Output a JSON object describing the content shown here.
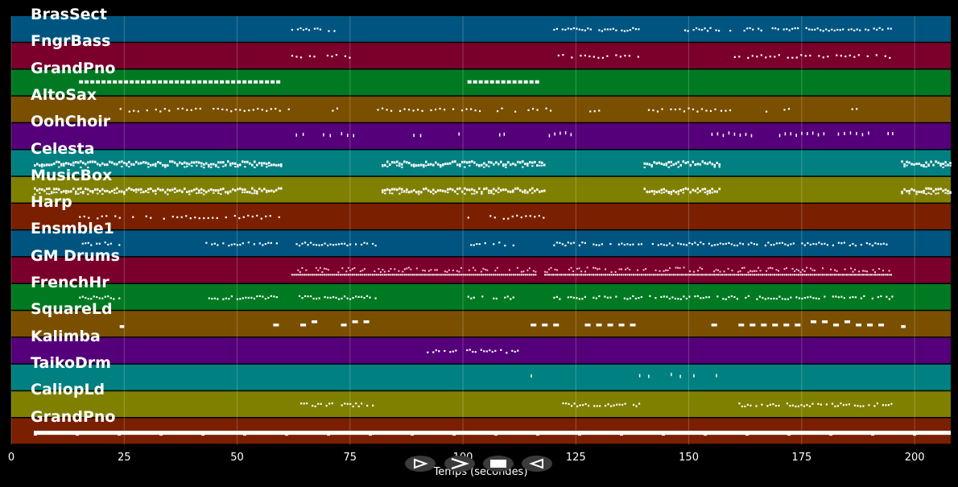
{
  "chart_data": {
    "type": "piano-roll",
    "xlabel": "Temps (secondes)",
    "xlim": [
      0,
      208
    ],
    "xticks": [
      0,
      25,
      50,
      75,
      100,
      125,
      150,
      175,
      200
    ],
    "tracks": [
      {
        "name": "BrasSect",
        "color": "#005580",
        "notes": [
          [
            62,
            72
          ],
          [
            120,
            139
          ],
          [
            149,
            157
          ],
          [
            159,
            195
          ]
        ],
        "style": "pattern"
      },
      {
        "name": "FngrBass",
        "color": "#7a002b",
        "notes": [
          [
            62,
            75
          ],
          [
            120,
            139
          ],
          [
            160,
            195
          ]
        ],
        "style": "dots"
      },
      {
        "name": "GrandPno",
        "color": "#007a22",
        "notes": [
          [
            15,
            60
          ],
          [
            101,
            117
          ]
        ],
        "style": "blocks"
      },
      {
        "name": "AltoSax",
        "color": "#7a5000",
        "notes": [
          [
            24,
            63
          ],
          [
            71,
            72
          ],
          [
            81,
            120
          ],
          [
            128,
            130
          ],
          [
            139,
            156
          ],
          [
            157,
            160
          ],
          [
            167,
            168
          ],
          [
            171,
            172
          ],
          [
            186,
            187
          ],
          [
            194,
            195
          ]
        ],
        "style": "dots"
      },
      {
        "name": "OohChoir",
        "color": "#55007a",
        "notes": [
          [
            63,
            66
          ],
          [
            69,
            72
          ],
          [
            73,
            77
          ],
          [
            89,
            92
          ],
          [
            99,
            100
          ],
          [
            108,
            110
          ],
          [
            119,
            125
          ],
          [
            155,
            165
          ],
          [
            170,
            181
          ],
          [
            183,
            191
          ],
          [
            194,
            196
          ]
        ],
        "style": "sparse"
      },
      {
        "name": "Celesta",
        "color": "#008080",
        "notes": [
          [
            5,
            60
          ],
          [
            82,
            118
          ],
          [
            140,
            157
          ],
          [
            197,
            208
          ]
        ],
        "style": "dense"
      },
      {
        "name": "MusicBox",
        "color": "#808000",
        "notes": [
          [
            5,
            60
          ],
          [
            82,
            118
          ],
          [
            140,
            157
          ],
          [
            197,
            208
          ]
        ],
        "style": "dense"
      },
      {
        "name": "Harp",
        "color": "#7a2000",
        "notes": [
          [
            15,
            60
          ],
          [
            101,
            118
          ]
        ],
        "style": "dots"
      },
      {
        "name": "Ensmble1",
        "color": "#005580",
        "notes": [
          [
            15,
            24
          ],
          [
            43,
            59
          ],
          [
            63,
            81
          ],
          [
            101,
            111
          ],
          [
            120,
            195
          ]
        ],
        "style": "pattern"
      },
      {
        "name": "GM Drums",
        "color": "#7a002b",
        "notes": [
          [
            62,
            116
          ],
          [
            118,
            195
          ]
        ],
        "style": "drums"
      },
      {
        "name": "FrenchHr",
        "color": "#007a22",
        "notes": [
          [
            15,
            24
          ],
          [
            43,
            59
          ],
          [
            63,
            81
          ],
          [
            101,
            111
          ],
          [
            120,
            195
          ]
        ],
        "style": "pattern"
      },
      {
        "name": "SquareLd",
        "color": "#7a5000",
        "notes": [
          [
            24,
            25
          ],
          [
            58,
            61
          ],
          [
            64,
            70
          ],
          [
            73,
            81
          ],
          [
            115,
            123
          ],
          [
            127,
            140
          ],
          [
            155,
            158
          ],
          [
            161,
            175
          ],
          [
            177,
            195
          ],
          [
            197,
            198
          ]
        ],
        "style": "dashes"
      },
      {
        "name": "Kalimba",
        "color": "#55007a",
        "notes": [
          [
            92,
            113
          ]
        ],
        "style": "pattern"
      },
      {
        "name": "TaikoDrm",
        "color": "#008080",
        "notes": [
          [
            115,
            116
          ],
          [
            139,
            140
          ],
          [
            141,
            142
          ],
          [
            146,
            147
          ],
          [
            148,
            149
          ],
          [
            151,
            152
          ],
          [
            156,
            157
          ]
        ],
        "style": "sparse"
      },
      {
        "name": "CaliopLd",
        "color": "#808000",
        "notes": [
          [
            64,
            71
          ],
          [
            73,
            80
          ],
          [
            122,
            139
          ],
          [
            161,
            195
          ]
        ],
        "style": "pattern"
      },
      {
        "name": "GrandPno",
        "color": "#7a2000",
        "notes": [
          [
            5,
            208
          ]
        ],
        "style": "bar"
      }
    ]
  },
  "controls": {
    "play_icon": "play-outline-icon",
    "forward_icon": "fast-forward-icon",
    "stop_icon": "stop-icon",
    "rewind_icon": "rewind-icon"
  }
}
